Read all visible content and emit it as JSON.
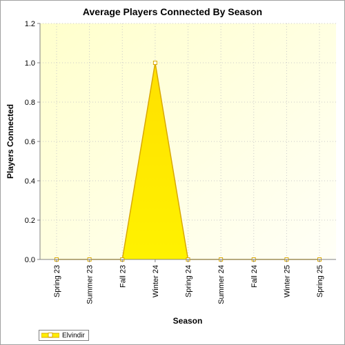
{
  "chart_data": {
    "type": "area",
    "title": "Average Players Connected By Season",
    "xlabel": "Season",
    "ylabel": "Players Connected",
    "categories": [
      "Spring 23",
      "Summer 23",
      "Fall 23",
      "Winter 24",
      "Spring 24",
      "Summer 24",
      "Fall 24",
      "Winter 25",
      "Spring 25"
    ],
    "series": [
      {
        "name": "Elvindir",
        "values": [
          0,
          0,
          0,
          1.0,
          0,
          0,
          0,
          0,
          0
        ],
        "fill_color": "#ffee00",
        "line_color": "#d9a800"
      }
    ],
    "ylim": [
      0,
      1.2
    ],
    "yticks": [
      0.0,
      0.2,
      0.4,
      0.6,
      0.8,
      1.0,
      1.2
    ],
    "ytick_labels": [
      "0.0",
      "0.2",
      "0.4",
      "0.6",
      "0.8",
      "1.0",
      "1.2"
    ],
    "grid": true,
    "legend_position": "bottom-left",
    "plot_background": "#ffffe0"
  }
}
